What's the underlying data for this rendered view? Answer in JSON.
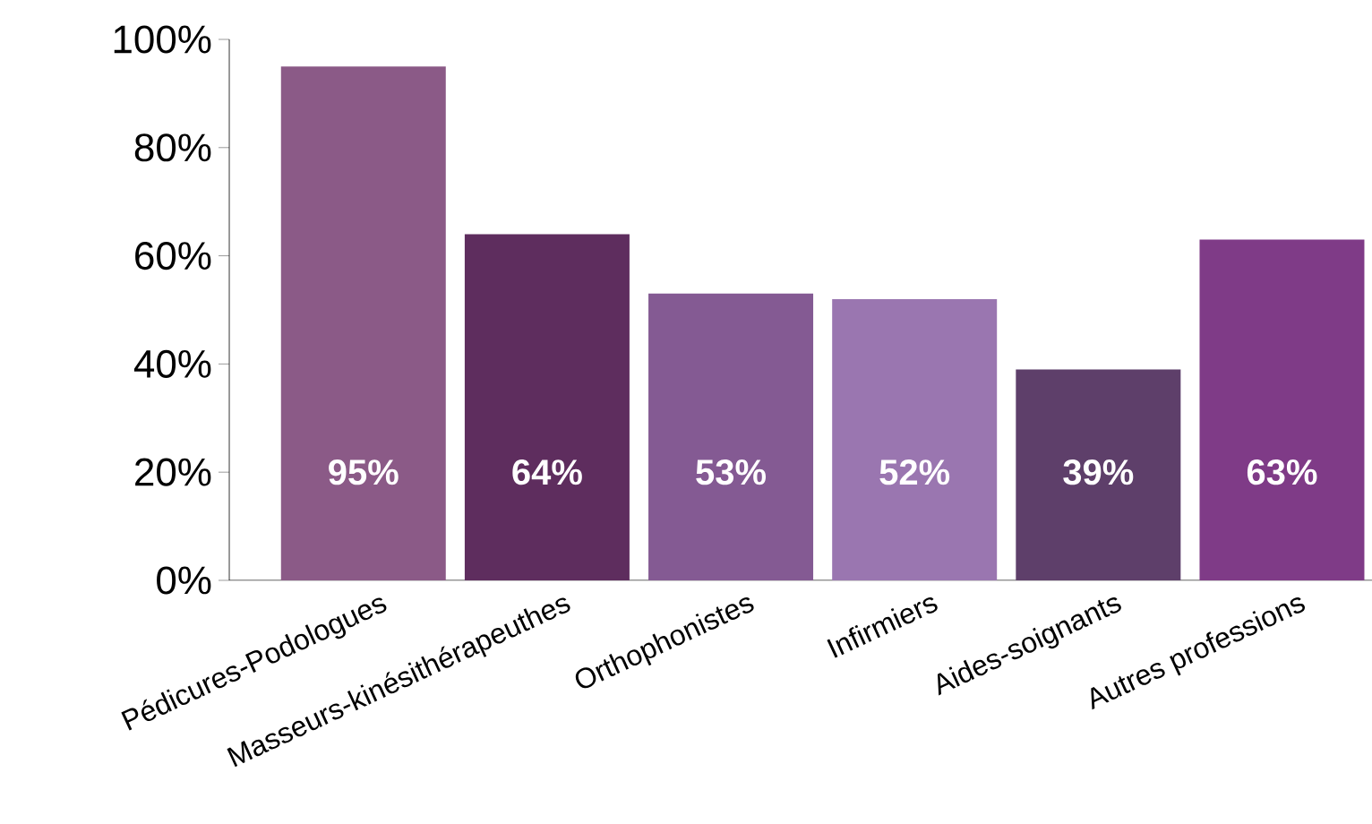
{
  "chart_data": {
    "type": "bar",
    "categories": [
      "Pédicures-Podologues",
      "Masseurs-kinésithérapeuthes",
      "Orthophonistes",
      "Infirmiers",
      "Aides-soignants",
      "Autres professions"
    ],
    "values": [
      95,
      64,
      53,
      52,
      39,
      63
    ],
    "colors": [
      "#8b5a87",
      "#5e2d5e",
      "#845a93",
      "#9a76b0",
      "#5e3f6a",
      "#7f3b87"
    ],
    "value_labels": [
      "95%",
      "64%",
      "53%",
      "52%",
      "39%",
      "63%"
    ],
    "ylim": [
      0,
      100
    ],
    "yticks": [
      {
        "value": 0,
        "label": "0%"
      },
      {
        "value": 20,
        "label": "20%"
      },
      {
        "value": 40,
        "label": "40%"
      },
      {
        "value": 60,
        "label": "60%"
      },
      {
        "value": 80,
        "label": "80%"
      },
      {
        "value": 100,
        "label": "100%"
      }
    ],
    "grid": false
  }
}
